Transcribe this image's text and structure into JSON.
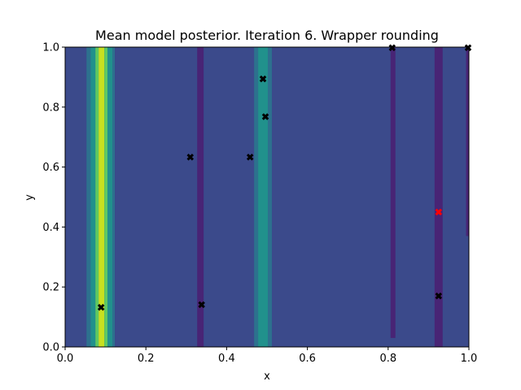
{
  "chart_data": {
    "type": "heatmap",
    "title": "Mean model posterior. Iteration 6. Wrapper rounding",
    "xlabel": "x",
    "ylabel": "y",
    "xlim": [
      0,
      1
    ],
    "ylim": [
      0,
      1
    ],
    "xticks": [
      "0.0",
      "0.2",
      "0.4",
      "0.6",
      "0.8",
      "1.0"
    ],
    "yticks": [
      "0.0",
      "0.2",
      "0.4",
      "0.6",
      "0.8",
      "1.0"
    ],
    "grid": false,
    "colormap": "viridis",
    "background_color": "#3b4a8b",
    "bands": [
      {
        "x0": 0.053,
        "x1": 0.063,
        "y0": 0.0,
        "y1": 1.0,
        "color": "#2d718e"
      },
      {
        "x0": 0.063,
        "x1": 0.075,
        "y0": 0.0,
        "y1": 1.0,
        "color": "#21918c"
      },
      {
        "x0": 0.075,
        "x1": 0.083,
        "y0": 0.0,
        "y1": 1.0,
        "color": "#5ec962"
      },
      {
        "x0": 0.083,
        "x1": 0.097,
        "y0": 0.0,
        "y1": 1.0,
        "color": "#c8e020"
      },
      {
        "x0": 0.097,
        "x1": 0.105,
        "y0": 0.0,
        "y1": 1.0,
        "color": "#5ec962"
      },
      {
        "x0": 0.105,
        "x1": 0.117,
        "y0": 0.0,
        "y1": 1.0,
        "color": "#21918c"
      },
      {
        "x0": 0.117,
        "x1": 0.123,
        "y0": 0.0,
        "y1": 1.0,
        "color": "#2d718e"
      },
      {
        "x0": 0.327,
        "x1": 0.343,
        "y0": 0.0,
        "y1": 1.0,
        "color": "#482475"
      },
      {
        "x0": 0.468,
        "x1": 0.478,
        "y0": 0.0,
        "y1": 1.0,
        "color": "#2d718e"
      },
      {
        "x0": 0.478,
        "x1": 0.502,
        "y0": 0.0,
        "y1": 1.0,
        "color": "#21918c"
      },
      {
        "x0": 0.502,
        "x1": 0.512,
        "y0": 0.0,
        "y1": 1.0,
        "color": "#2d718e"
      },
      {
        "x0": 0.806,
        "x1": 0.818,
        "y0": 0.03,
        "y1": 1.0,
        "color": "#482475"
      },
      {
        "x0": 0.915,
        "x1": 0.935,
        "y0": 0.0,
        "y1": 1.0,
        "color": "#482475"
      },
      {
        "x0": 0.993,
        "x1": 1.0,
        "y0": 0.37,
        "y1": 1.0,
        "color": "#482475"
      }
    ],
    "points": [
      {
        "x": 0.089,
        "y": 0.132,
        "color": "#000000"
      },
      {
        "x": 0.31,
        "y": 0.633,
        "color": "#000000"
      },
      {
        "x": 0.338,
        "y": 0.141,
        "color": "#000000"
      },
      {
        "x": 0.458,
        "y": 0.633,
        "color": "#000000"
      },
      {
        "x": 0.49,
        "y": 0.894,
        "color": "#000000"
      },
      {
        "x": 0.496,
        "y": 0.768,
        "color": "#000000"
      },
      {
        "x": 0.81,
        "y": 0.998,
        "color": "#000000"
      },
      {
        "x": 0.925,
        "y": 0.17,
        "color": "#000000"
      },
      {
        "x": 0.998,
        "y": 0.998,
        "color": "#000000"
      },
      {
        "x": 0.925,
        "y": 0.45,
        "color": "#ff0000"
      }
    ]
  }
}
